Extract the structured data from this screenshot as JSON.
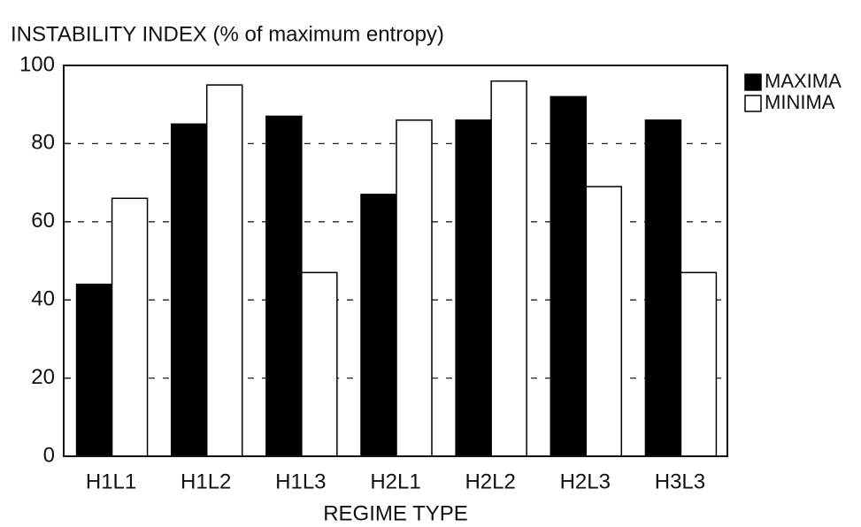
{
  "chart_data": {
    "type": "bar",
    "title": "INSTABILITY INDEX (% of maximum entropy)",
    "x_label": "REGIME TYPE",
    "categories": [
      "H1L1",
      "H1L2",
      "H1L3",
      "H2L1",
      "H2L2",
      "H2L3",
      "H3L3"
    ],
    "series": [
      {
        "name": "MAXIMA",
        "color": "#000000",
        "values": [
          44,
          85,
          87,
          67,
          86,
          92,
          86
        ]
      },
      {
        "name": "MINIMA",
        "color": "#ffffff",
        "values": [
          66,
          95,
          47,
          86,
          96,
          69,
          47
        ]
      }
    ],
    "ylim": [
      0,
      100
    ],
    "yticks": [
      0,
      20,
      40,
      60,
      80,
      100
    ],
    "grid": true,
    "legend": "right"
  }
}
